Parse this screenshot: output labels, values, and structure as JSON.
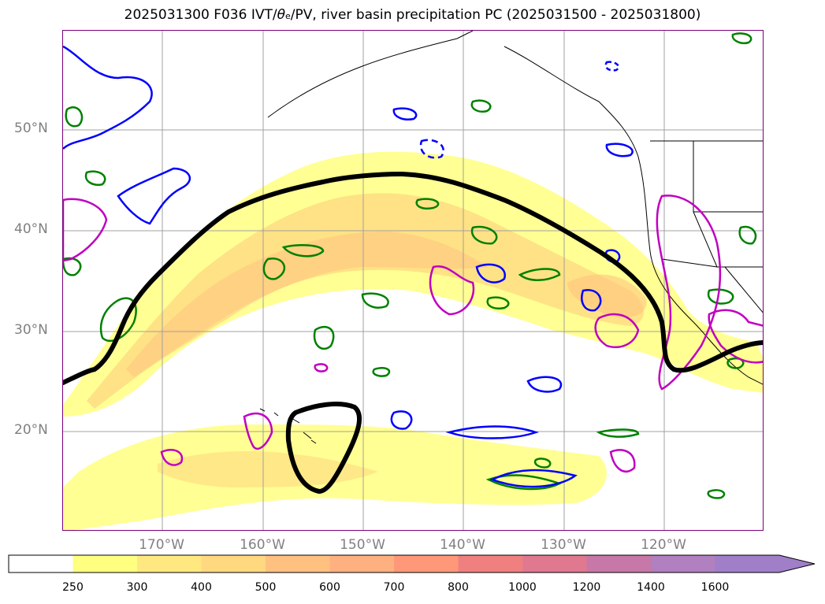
{
  "header": {
    "title_prefix": "2025031300 F036 IVT/",
    "title_theta": "θ",
    "title_sub": "e",
    "title_suffix": "/PV, river basin precipitation PC (2025031500 - 2025031800)"
  },
  "map": {
    "lat_labels": [
      "50°N",
      "40°N",
      "30°N",
      "20°N"
    ],
    "lon_labels": [
      "170°W",
      "160°W",
      "150°W",
      "140°W",
      "130°W",
      "120°W"
    ]
  },
  "colorbar": {
    "ticks": [
      "250",
      "300",
      "400",
      "500",
      "600",
      "700",
      "800",
      "1000",
      "1200",
      "1400",
      "1600"
    ],
    "colors": [
      "#ffff80",
      "#ffe880",
      "#ffd880",
      "#ffc080",
      "#ffb080",
      "#ff9878",
      "#f08080",
      "#e07890",
      "#c878a8",
      "#b080c0",
      "#a07ec8"
    ],
    "extend": "max"
  },
  "colors": {
    "contour_black": "#000000",
    "contour_blue": "#0000ff",
    "contour_green": "#008000",
    "contour_magenta": "#c000c0",
    "grid": "#a0a0a0"
  }
}
